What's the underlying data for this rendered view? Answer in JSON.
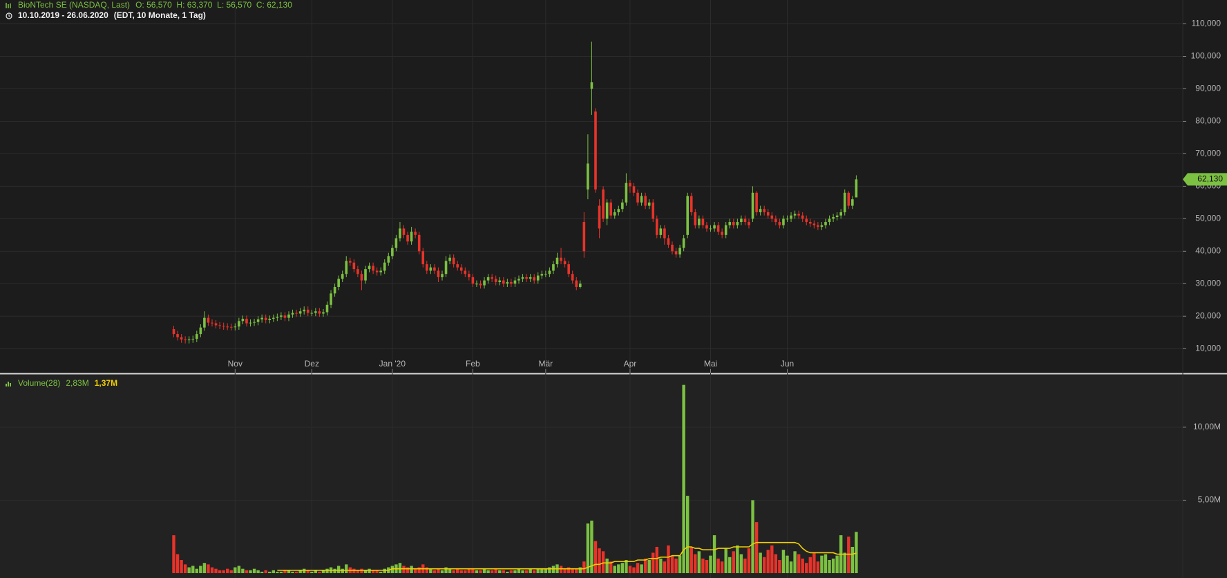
{
  "chart_data": [
    {
      "type": "candlestick",
      "title": "BioNTech SE (NASDAQ, Last)",
      "quote": "O: 56,570  H: 63,370  L: 56,570  C: 62,130",
      "subtitle": "10.10.2019 - 26.06.2020",
      "note": "(EDT, 10 Monate, 1 Tag)",
      "categories": [
        null,
        null,
        null,
        null,
        null,
        null,
        null,
        null,
        null,
        null,
        null,
        null,
        null,
        null,
        null,
        null,
        "Nov",
        null,
        null,
        null,
        null,
        null,
        null,
        null,
        null,
        null,
        null,
        null,
        null,
        null,
        null,
        null,
        null,
        null,
        null,
        null,
        "Dez",
        null,
        null,
        null,
        null,
        null,
        null,
        null,
        null,
        null,
        null,
        null,
        null,
        null,
        null,
        null,
        null,
        null,
        null,
        null,
        null,
        "Jan '20",
        null,
        null,
        null,
        null,
        null,
        null,
        null,
        null,
        null,
        null,
        null,
        null,
        null,
        null,
        null,
        null,
        null,
        null,
        null,
        null,
        "Feb",
        null,
        null,
        null,
        null,
        null,
        null,
        null,
        null,
        null,
        null,
        null,
        null,
        null,
        null,
        null,
        null,
        null,
        null,
        "Mär",
        null,
        null,
        null,
        null,
        null,
        null,
        null,
        null,
        null,
        null,
        null,
        null,
        null,
        null,
        null,
        null,
        null,
        null,
        null,
        null,
        null,
        "Apr",
        null,
        null,
        null,
        null,
        null,
        null,
        null,
        null,
        null,
        null,
        null,
        null,
        null,
        null,
        null,
        null,
        null,
        null,
        null,
        null,
        "Mai",
        null,
        null,
        null,
        null,
        null,
        null,
        null,
        null,
        null,
        null,
        null,
        null,
        null,
        null,
        null,
        null,
        null,
        null,
        null,
        "Jun",
        null,
        null,
        null,
        null,
        null,
        null,
        null,
        null,
        null,
        null,
        null,
        null,
        null,
        null,
        null,
        null,
        null,
        null
      ],
      "open": [
        16.0,
        14.5,
        13.5,
        12.8,
        12.6,
        12.8,
        13.0,
        14.5,
        16.5,
        19.5,
        18.0,
        17.8,
        17.2,
        17.0,
        16.8,
        16.7,
        16.6,
        16.8,
        18.5,
        19.2,
        17.8,
        18.0,
        18.2,
        19.0,
        19.5,
        18.8,
        19.2,
        19.5,
        19.8,
        20.2,
        19.5,
        20.5,
        21.0,
        20.8,
        21.5,
        22.0,
        21.0,
        21.0,
        21.5,
        20.8,
        21.2,
        23.5,
        27.0,
        29.0,
        31.5,
        33.0,
        37.0,
        36.5,
        34.5,
        33.0,
        31.0,
        34.5,
        35.5,
        34.0,
        33.5,
        34.0,
        36.5,
        38.5,
        41.0,
        44.0,
        47.0,
        45.0,
        43.0,
        46.0,
        45.0,
        40.0,
        36.0,
        34.0,
        35.0,
        34.0,
        32.0,
        33.0,
        37.0,
        38.0,
        36.0,
        35.0,
        34.0,
        33.0,
        32.0,
        30.0,
        30.0,
        29.5,
        31.0,
        32.0,
        31.5,
        30.5,
        31.0,
        30.0,
        30.5,
        30.0,
        31.0,
        31.5,
        32.0,
        31.5,
        32.0,
        31.0,
        32.5,
        33.0,
        33.0,
        34.0,
        36.0,
        38.0,
        37.0,
        36.0,
        33.0,
        31.0,
        29.0,
        49.0,
        59.0,
        90.0,
        83.0,
        54.0,
        59.0,
        50.0,
        55.0,
        51.0,
        52.0,
        53.0,
        55.0,
        61.0,
        60.0,
        58.0,
        55.0,
        57.0,
        54.0,
        55.0,
        50.0,
        45.0,
        47.0,
        44.0,
        42.0,
        40.0,
        39.0,
        41.0,
        45.0,
        57.0,
        52.0,
        48.0,
        50.0,
        48.0,
        47.0,
        47.0,
        48.0,
        46.0,
        45.0,
        48.0,
        49.0,
        48.0,
        49.0,
        50.0,
        49.0,
        50.0,
        58.0,
        52.0,
        53.0,
        52.0,
        51.0,
        50.0,
        49.0,
        48.0,
        50.0,
        50.0,
        51.0,
        51.5,
        51.0,
        50.0,
        49.0,
        48.5,
        48.0,
        47.5,
        48.0,
        49.0,
        50.0,
        50.5,
        51.0,
        52.0,
        58.0,
        54.0,
        56.57
      ],
      "high": [
        17,
        15.5,
        14.5,
        13.8,
        13.8,
        14,
        15.5,
        17.5,
        21.5,
        20.5,
        19,
        18.8,
        18.2,
        18,
        17.8,
        17.7,
        17.8,
        19.5,
        20.2,
        20.2,
        19,
        19.2,
        20,
        20.5,
        20.5,
        20.2,
        20.5,
        20.8,
        21.2,
        21.2,
        21.5,
        22,
        22,
        22.5,
        23,
        23,
        22,
        22.5,
        22.5,
        22.2,
        24.5,
        28,
        30,
        32.5,
        34,
        38.5,
        38,
        37.5,
        35.5,
        34,
        35.5,
        36.5,
        36.5,
        35,
        35,
        37.5,
        39.5,
        42,
        45,
        49,
        48,
        46,
        47.5,
        47,
        46,
        41,
        37,
        36,
        36,
        35,
        34,
        38.5,
        39,
        39,
        37,
        36,
        35,
        34,
        33,
        31,
        31,
        32,
        33,
        33,
        32.5,
        32,
        32,
        31.5,
        31.5,
        32,
        32.5,
        33,
        33,
        33,
        33,
        33.5,
        34,
        34,
        35,
        37,
        39.5,
        41,
        38,
        37,
        34,
        32,
        31,
        52,
        76,
        104.5,
        84,
        56,
        60,
        56,
        56,
        53,
        54,
        56,
        64,
        62,
        61,
        59,
        58,
        58,
        56,
        56,
        51,
        48,
        48,
        45,
        43,
        41,
        42,
        45,
        58,
        58,
        53,
        51,
        51,
        49,
        48,
        49,
        49,
        47,
        49,
        50,
        50,
        50,
        51,
        51,
        50,
        60,
        58.5,
        54,
        54,
        53,
        52,
        51,
        50,
        51,
        51,
        52,
        52.5,
        52.5,
        52,
        51,
        50,
        49.5,
        49,
        49,
        50,
        51,
        51.5,
        52,
        53,
        59,
        58.5,
        57,
        63.37
      ],
      "low": [
        13.5,
        12.5,
        11.8,
        11.6,
        11.6,
        11.8,
        12,
        13.5,
        15.5,
        17,
        16.8,
        16.2,
        16,
        15.8,
        15.7,
        15.6,
        15.6,
        15.8,
        17.5,
        16.8,
        16.8,
        17,
        17.2,
        18,
        17.8,
        17.8,
        18.2,
        18.5,
        18.8,
        18.5,
        18.5,
        19.5,
        19.8,
        19.8,
        20.5,
        20,
        20,
        20,
        19.8,
        19.8,
        20.2,
        22.5,
        26,
        28,
        30.5,
        32,
        35.5,
        33.5,
        32,
        28,
        30,
        33.5,
        33,
        32.5,
        32.5,
        33,
        35.5,
        37.5,
        40,
        43,
        44,
        42,
        42,
        44,
        39,
        35,
        33,
        33,
        33,
        30.5,
        31,
        32,
        36,
        35,
        34,
        33,
        32,
        31,
        29,
        29,
        28.5,
        28.5,
        30,
        30.5,
        29.5,
        29.5,
        29,
        29,
        29,
        29,
        30,
        30.5,
        30.5,
        30.5,
        30,
        30,
        31.5,
        32,
        32,
        33,
        35,
        36,
        35,
        32,
        30,
        28,
        28.5,
        38,
        56,
        82,
        58,
        44,
        49,
        48,
        50,
        50,
        51,
        52,
        54,
        58,
        57,
        54,
        54,
        53,
        53,
        49,
        44,
        44,
        42,
        41,
        39,
        38,
        38,
        40,
        44,
        51,
        47,
        47,
        47,
        46,
        46,
        46,
        45,
        44,
        44,
        47,
        47,
        47,
        48,
        48,
        47,
        49,
        51,
        51,
        51,
        50,
        49,
        48,
        47,
        47,
        49,
        49,
        50,
        50,
        49,
        48,
        47.5,
        47,
        46.5,
        46.5,
        47,
        48,
        49,
        49.5,
        50,
        51,
        53,
        53,
        56.57
      ],
      "close": [
        14.5,
        13.5,
        12.8,
        12.6,
        12.8,
        13.0,
        14.5,
        16.5,
        19.5,
        18.0,
        17.8,
        17.2,
        17.0,
        16.8,
        16.7,
        16.6,
        16.8,
        18.5,
        19.2,
        17.8,
        18.0,
        18.2,
        19.0,
        19.5,
        18.8,
        19.2,
        19.5,
        19.8,
        20.2,
        19.5,
        20.5,
        21.0,
        20.8,
        21.5,
        22.0,
        21.0,
        21.0,
        21.5,
        20.8,
        21.2,
        23.5,
        27.0,
        29.0,
        31.5,
        33.0,
        37.0,
        36.5,
        34.5,
        33.0,
        31.0,
        34.5,
        35.5,
        34.0,
        33.5,
        34.0,
        36.5,
        38.5,
        41.0,
        44.0,
        47.0,
        45.0,
        43.0,
        46.0,
        45.0,
        40.0,
        36.0,
        34.0,
        35.0,
        34.0,
        32.0,
        33.0,
        37.0,
        38.0,
        36.0,
        35.0,
        34.0,
        33.0,
        32.0,
        30.0,
        30.0,
        29.5,
        31.0,
        32.0,
        31.5,
        30.5,
        31.0,
        30.0,
        30.5,
        30.0,
        31.0,
        31.5,
        32.0,
        31.5,
        32.0,
        31.0,
        32.5,
        33.0,
        33.0,
        34.0,
        36.0,
        38.0,
        37.0,
        36.0,
        33.0,
        31.0,
        29.0,
        30.0,
        40.0,
        67.0,
        92.0,
        59.0,
        47.0,
        50.0,
        55.0,
        51.0,
        52.0,
        53.0,
        55.0,
        61.0,
        60.0,
        58.0,
        55.0,
        57.0,
        54.0,
        55.0,
        50.0,
        45.0,
        47.0,
        44.0,
        42.0,
        40.0,
        39.0,
        41.0,
        44.0,
        57.0,
        52.0,
        48.0,
        50.0,
        48.0,
        47.0,
        47.0,
        48.0,
        46.0,
        45.0,
        48.0,
        49.0,
        48.0,
        49.0,
        50.0,
        49.0,
        48.0,
        58.0,
        52.0,
        53.0,
        52.0,
        51.0,
        50.0,
        49.0,
        48.0,
        50.0,
        50.0,
        51.0,
        51.5,
        51.0,
        50.0,
        49.0,
        48.5,
        48.0,
        47.5,
        48.0,
        49.0,
        50.0,
        50.5,
        51.0,
        52.0,
        58.0,
        54.0,
        56.0,
        62.13
      ],
      "up_color": "#7cc142",
      "down_color": "#e8332a",
      "ylim": [
        2.6,
        116.5
      ],
      "yticks": [
        {
          "value": 10,
          "label": "10,000"
        },
        {
          "value": 20,
          "label": "20,000"
        },
        {
          "value": 30,
          "label": "30,000"
        },
        {
          "value": 40,
          "label": "40,000"
        },
        {
          "value": 50,
          "label": "50,000"
        },
        {
          "value": 60,
          "label": "60,000"
        },
        {
          "value": 70,
          "label": "70,000"
        },
        {
          "value": 80,
          "label": "80,000"
        },
        {
          "value": 90,
          "label": "90,000"
        },
        {
          "value": 100,
          "label": "100,000"
        },
        {
          "value": 110,
          "label": "110,000"
        }
      ],
      "last_marker": {
        "value": 62.13,
        "label": "62,130"
      },
      "grid": true
    },
    {
      "type": "volume",
      "title": "Volume(28)",
      "value_label": "2,83M",
      "average_label": "1,37M",
      "values": [
        2.6,
        1.3,
        0.9,
        0.6,
        0.4,
        0.5,
        0.3,
        0.5,
        0.7,
        0.6,
        0.4,
        0.3,
        0.2,
        0.2,
        0.3,
        0.2,
        0.4,
        0.5,
        0.3,
        0.2,
        0.2,
        0.3,
        0.2,
        0.1,
        0.2,
        0.1,
        0.2,
        0.1,
        0.1,
        0.2,
        0.2,
        0.1,
        0.1,
        0.2,
        0.3,
        0.2,
        0.1,
        0.2,
        0.1,
        0.2,
        0.3,
        0.4,
        0.3,
        0.5,
        0.3,
        0.6,
        0.4,
        0.3,
        0.2,
        0.3,
        0.2,
        0.3,
        0.2,
        0.2,
        0.1,
        0.3,
        0.4,
        0.5,
        0.6,
        0.7,
        0.5,
        0.4,
        0.5,
        0.3,
        0.4,
        0.6,
        0.4,
        0.3,
        0.2,
        0.3,
        0.2,
        0.4,
        0.3,
        0.2,
        0.3,
        0.2,
        0.2,
        0.3,
        0.3,
        0.2,
        0.2,
        0.3,
        0.2,
        0.2,
        0.3,
        0.2,
        0.2,
        0.1,
        0.2,
        0.2,
        0.3,
        0.2,
        0.2,
        0.3,
        0.2,
        0.3,
        0.3,
        0.3,
        0.4,
        0.5,
        0.6,
        0.5,
        0.3,
        0.4,
        0.3,
        0.3,
        0.4,
        0.8,
        3.4,
        3.6,
        2.2,
        1.7,
        1.5,
        1.0,
        0.8,
        0.5,
        0.6,
        0.7,
        0.9,
        0.5,
        0.4,
        0.7,
        0.6,
        1.0,
        0.9,
        1.4,
        1.8,
        1.0,
        0.8,
        1.9,
        1.2,
        1.0,
        1.2,
        12.9,
        5.3,
        1.8,
        1.3,
        1.5,
        1.0,
        0.9,
        1.2,
        2.6,
        1.0,
        0.8,
        1.7,
        1.1,
        1.5,
        1.9,
        1.3,
        1.0,
        1.7,
        5.0,
        3.5,
        1.4,
        1.1,
        1.6,
        1.9,
        1.3,
        0.9,
        1.6,
        1.2,
        0.8,
        1.5,
        1.3,
        1.0,
        0.7,
        1.1,
        1.4,
        0.8,
        1.2,
        1.3,
        0.9,
        1.0,
        1.2,
        2.6,
        1.4,
        2.5,
        1.8,
        2.83
      ],
      "average": [
        null,
        null,
        null,
        null,
        null,
        null,
        null,
        null,
        null,
        null,
        null,
        null,
        null,
        null,
        null,
        null,
        null,
        null,
        null,
        null,
        null,
        null,
        null,
        null,
        null,
        null,
        null,
        0.2,
        0.2,
        0.2,
        0.2,
        0.2,
        0.2,
        0.2,
        0.2,
        0.2,
        0.2,
        0.2,
        0.2,
        0.2,
        0.2,
        0.2,
        0.2,
        0.2,
        0.2,
        0.2,
        0.2,
        0.2,
        0.2,
        0.2,
        0.2,
        0.2,
        0.2,
        0.2,
        0.2,
        0.2,
        0.2,
        0.3,
        0.3,
        0.3,
        0.3,
        0.3,
        0.3,
        0.3,
        0.3,
        0.3,
        0.3,
        0.3,
        0.3,
        0.3,
        0.3,
        0.3,
        0.3,
        0.3,
        0.3,
        0.3,
        0.3,
        0.3,
        0.3,
        0.3,
        0.3,
        0.3,
        0.3,
        0.3,
        0.3,
        0.3,
        0.3,
        0.3,
        0.3,
        0.3,
        0.3,
        0.3,
        0.3,
        0.3,
        0.3,
        0.3,
        0.3,
        0.3,
        0.3,
        0.3,
        0.3,
        0.3,
        0.3,
        0.3,
        0.3,
        0.3,
        0.3,
        0.3,
        0.4,
        0.5,
        0.6,
        0.6,
        0.7,
        0.7,
        0.7,
        0.8,
        0.8,
        0.8,
        0.8,
        0.8,
        0.8,
        0.9,
        0.9,
        0.9,
        1.0,
        1.0,
        1.0,
        1.1,
        1.1,
        1.1,
        1.2,
        1.2,
        1.2,
        1.6,
        1.8,
        1.8,
        1.7,
        1.7,
        1.6,
        1.6,
        1.6,
        1.6,
        1.7,
        1.7,
        1.7,
        1.7,
        1.8,
        1.8,
        1.8,
        1.8,
        1.8,
        2.0,
        2.1,
        2.1,
        2.1,
        2.1,
        2.1,
        2.1,
        2.1,
        2.1,
        2.1,
        2.1,
        2.1,
        2.0,
        1.7,
        1.5,
        1.4,
        1.4,
        1.4,
        1.4,
        1.4,
        1.4,
        1.4,
        1.3,
        1.3,
        1.3,
        1.3,
        1.3,
        1.37
      ],
      "average_color": "#f2cf00",
      "ylim": [
        0,
        13.5
      ],
      "yticks": [
        {
          "value": 5,
          "label": "5,00M"
        },
        {
          "value": 10,
          "label": "10,00M"
        }
      ],
      "grid": true
    }
  ]
}
